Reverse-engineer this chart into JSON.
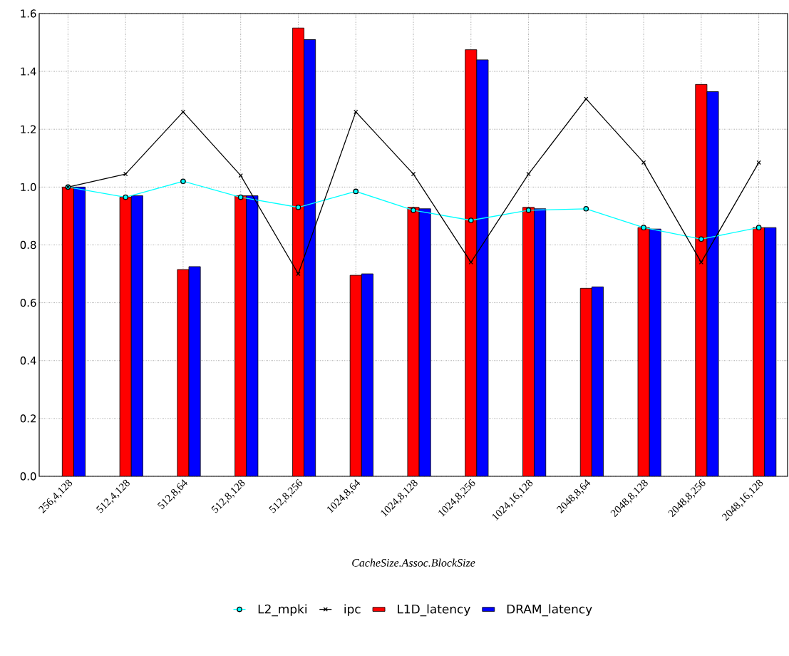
{
  "chart_data": {
    "type": "bar",
    "xlabel": "CacheSize.Assoc.BlockSize",
    "categories": [
      "256,4,128",
      "512,4,128",
      "512,8,64",
      "512,8,128",
      "512,8,256",
      "1024,8,64",
      "1024,8,128",
      "1024,8,256",
      "1024,16,128",
      "2048,8,64",
      "2048,8,128",
      "2048,8,256",
      "2048,16,128"
    ],
    "series": [
      {
        "name": "L2_mpki",
        "type": "line",
        "marker": "circle",
        "color": "#00ffff",
        "values": [
          1.0,
          0.965,
          1.02,
          0.965,
          0.93,
          0.985,
          0.92,
          0.885,
          0.92,
          0.925,
          0.86,
          0.82,
          0.86
        ]
      },
      {
        "name": "ipc",
        "type": "line",
        "marker": "cross",
        "color": "#000000",
        "values": [
          1.0,
          1.045,
          1.26,
          1.04,
          0.7,
          1.26,
          1.045,
          0.74,
          1.045,
          1.305,
          1.085,
          0.74,
          1.085
        ]
      },
      {
        "name": "L1D_latency",
        "color": "#ff0000",
        "values": [
          1.0,
          0.965,
          0.715,
          0.97,
          1.55,
          0.695,
          0.93,
          1.475,
          0.93,
          0.65,
          0.86,
          1.355,
          0.86
        ]
      },
      {
        "name": "DRAM_latency",
        "color": "#0000ff",
        "values": [
          1.0,
          0.97,
          0.725,
          0.97,
          1.51,
          0.7,
          0.925,
          1.44,
          0.925,
          0.655,
          0.855,
          1.33,
          0.86
        ]
      }
    ],
    "ylim": [
      0,
      1.6
    ],
    "yticks": [
      {
        "value": 0,
        "label": "0.0"
      },
      0.2,
      0.4,
      0.6,
      0.8,
      {
        "value": 1,
        "label": "1.0"
      },
      1.2,
      1.4,
      1.6
    ],
    "grid": true,
    "legend": "bottom"
  }
}
